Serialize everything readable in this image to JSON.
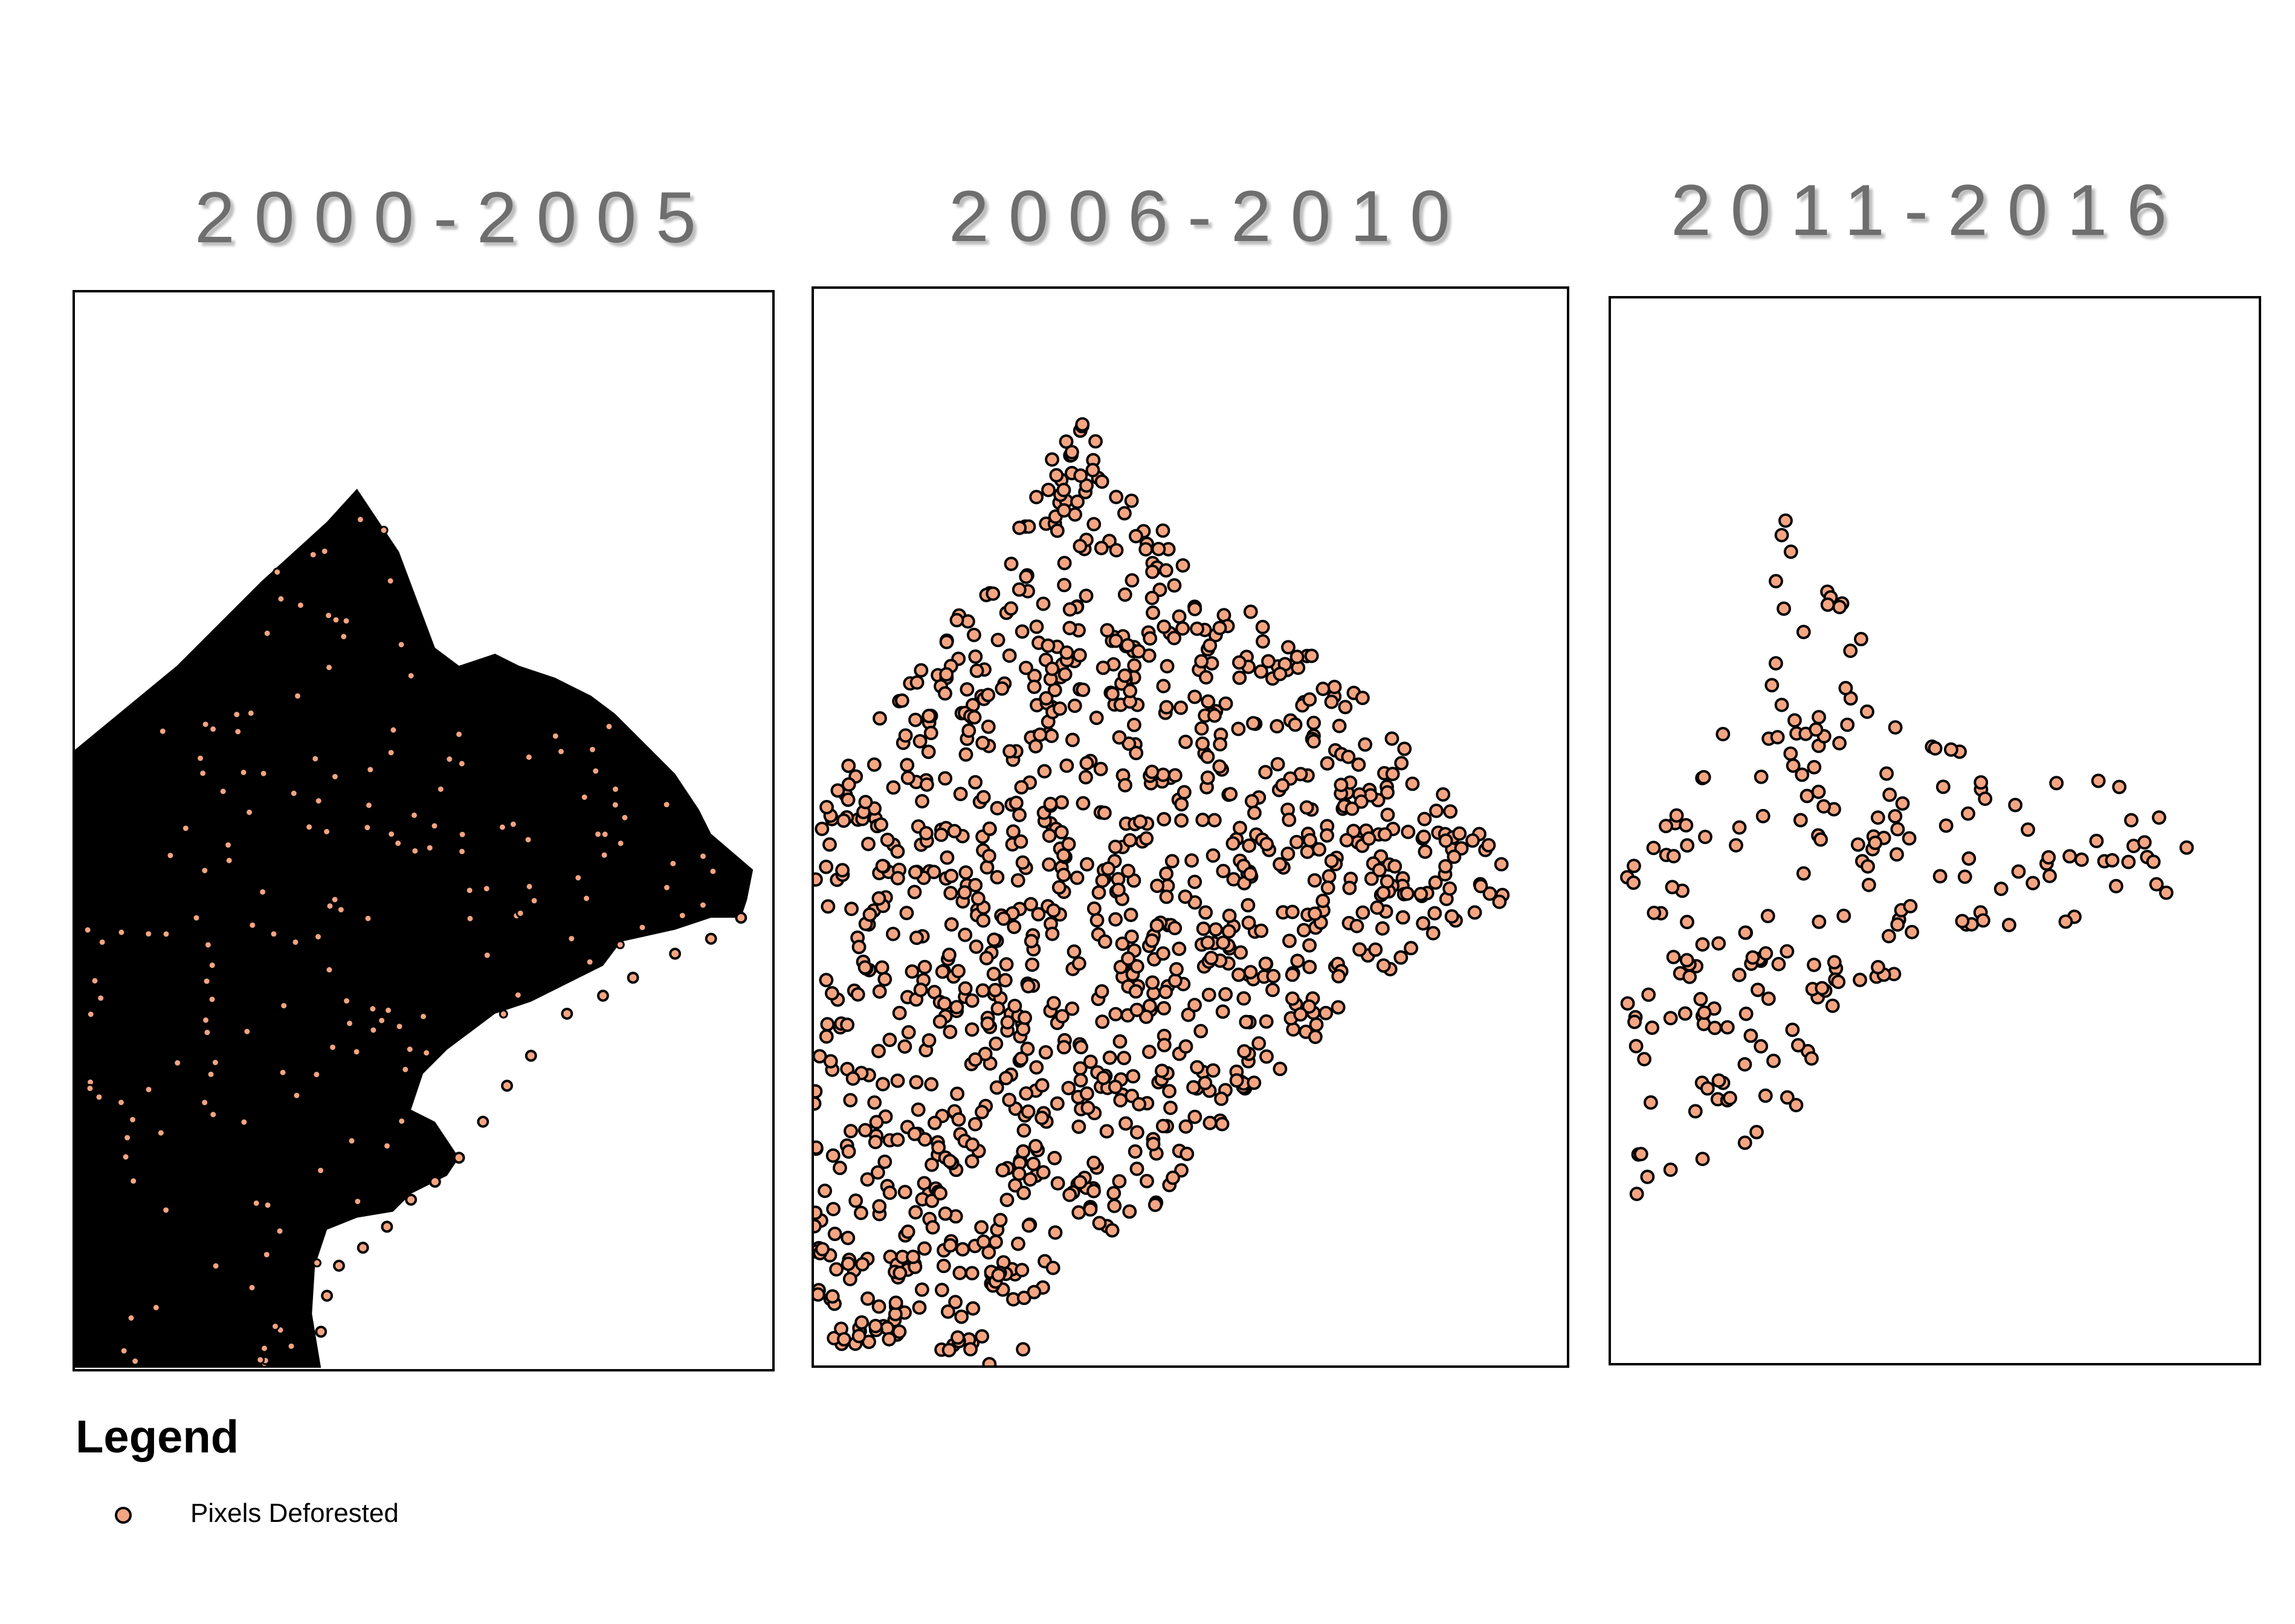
{
  "panels": [
    {
      "title": "2000-2005",
      "density": "dense"
    },
    {
      "title": "2006-2010",
      "density": "scattered"
    },
    {
      "title": "2011-2016",
      "density": "sparse"
    }
  ],
  "legend": {
    "title": "Legend",
    "items": [
      {
        "label": "Pixels Deforested",
        "marker": "circle",
        "fill_color": "#f4a582",
        "outline_color": "#000000"
      }
    ]
  }
}
